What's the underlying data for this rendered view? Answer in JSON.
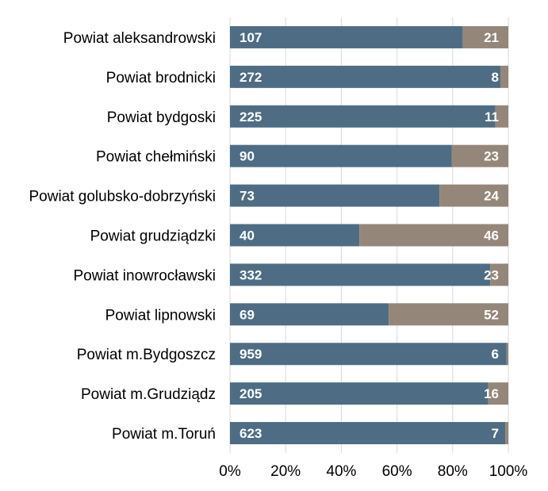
{
  "chart_data": {
    "type": "bar",
    "orientation": "horizontal",
    "stacking": "percent",
    "categories": [
      "Powiat aleksandrowski",
      "Powiat brodnicki",
      "Powiat bydgoski",
      "Powiat chełmiński",
      "Powiat golubsko-dobrzyński",
      "Powiat grudziądzki",
      "Powiat inowrocławski",
      "Powiat lipnowski",
      "Powiat m.Bydgoszcz",
      "Powiat m.Grudziądz",
      "Powiat m.Toruń"
    ],
    "series": [
      {
        "values": [
          107,
          272,
          225,
          90,
          73,
          40,
          332,
          69,
          959,
          205,
          623
        ],
        "color": "#4e6d84"
      },
      {
        "values": [
          21,
          8,
          11,
          23,
          24,
          46,
          23,
          52,
          6,
          16,
          7
        ],
        "color": "#948679"
      }
    ],
    "x_ticks": [
      "0%",
      "20%",
      "40%",
      "60%",
      "80%",
      "100%"
    ],
    "xlim": [
      0,
      100
    ],
    "title": "",
    "xlabel": "",
    "ylabel": "",
    "grid": "vertical",
    "legend": "none"
  }
}
